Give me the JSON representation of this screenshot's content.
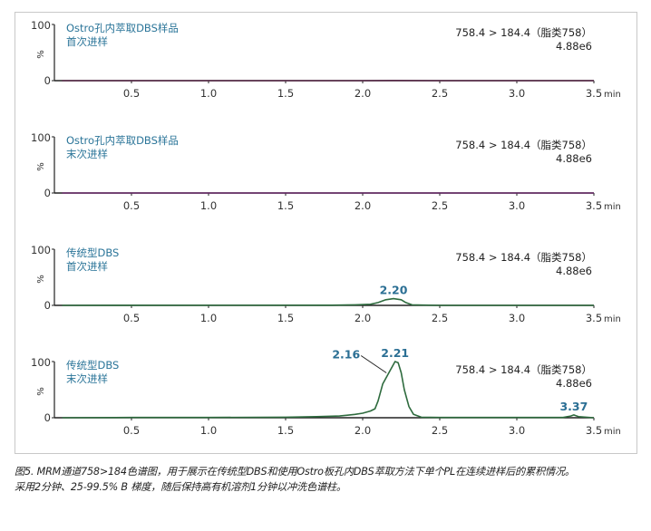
{
  "figure": {
    "caption_lines": [
      "图5. MRM通道758>184色谱图，用于展示在传统型DBS和使用Ostro板孔内DBS萃取方法下单个PL在连续进样后的累积情况。",
      "采用2分钟、25-99.5% B 梯度，随后保持高有机溶剂1分钟以冲洗色谱柱。"
    ]
  },
  "chart_data": [
    {
      "type": "line",
      "title": "Ostro孔内萃取DBS样品 首次进样",
      "label_lines": [
        "Ostro孔内萃取DBS样品",
        "首次进样"
      ],
      "channel": "758.4 > 184.4（脂类758）",
      "intensity": "4.88e6",
      "xlabel": "min",
      "ylabel": "%",
      "xlim": [
        0,
        3.5
      ],
      "ylim": [
        0,
        100
      ],
      "x_ticks": [
        "0.5",
        "1.0",
        "1.5",
        "2.0",
        "2.5",
        "3.0",
        "3.5"
      ],
      "y_ticks": [
        "0",
        "100"
      ],
      "line_color": "#5a2a4a",
      "x": [
        0.05,
        0.5,
        1.0,
        1.5,
        2.0,
        2.2,
        2.5,
        3.0,
        3.5
      ],
      "y": [
        0,
        0,
        0,
        0,
        0,
        0.3,
        0,
        0,
        0
      ],
      "peaks": []
    },
    {
      "type": "line",
      "title": "Ostro孔内萃取DBS样品 末次进样",
      "label_lines": [
        "Ostro孔内萃取DBS样品",
        "末次进样"
      ],
      "channel": "758.4 > 184.4（脂类758）",
      "intensity": "4.88e6",
      "xlabel": "min",
      "ylabel": "%",
      "xlim": [
        0,
        3.5
      ],
      "ylim": [
        0,
        100
      ],
      "x_ticks": [
        "0.5",
        "1.0",
        "1.5",
        "2.0",
        "2.5",
        "3.0",
        "3.5"
      ],
      "y_ticks": [
        "0",
        "100"
      ],
      "line_color": "#6a2a6a",
      "x": [
        0.05,
        0.5,
        1.0,
        1.5,
        2.0,
        2.5,
        3.0,
        3.5
      ],
      "y": [
        0,
        0,
        0,
        0,
        0,
        0,
        0,
        0
      ],
      "peaks": []
    },
    {
      "type": "line",
      "title": "传统型DBS 首次进样",
      "label_lines": [
        "传统型DBS",
        "首次进样"
      ],
      "channel": "758.4 > 184.4（脂类758）",
      "intensity": "4.88e6",
      "xlabel": "min",
      "ylabel": "%",
      "xlim": [
        0,
        3.5
      ],
      "ylim": [
        0,
        100
      ],
      "x_ticks": [
        "0.5",
        "1.0",
        "1.5",
        "2.0",
        "2.5",
        "3.0",
        "3.5"
      ],
      "y_ticks": [
        "0",
        "100"
      ],
      "line_color": "#2e6b3e",
      "x": [
        0.05,
        1.8,
        1.95,
        2.05,
        2.1,
        2.15,
        2.2,
        2.25,
        2.28,
        2.32,
        2.5,
        3.0,
        3.5
      ],
      "y": [
        0,
        0.3,
        1,
        2,
        5,
        10,
        12,
        10,
        5,
        1,
        0,
        0,
        0
      ],
      "peaks": [
        {
          "rt": "2.20",
          "x": 2.2,
          "y": 12
        }
      ]
    },
    {
      "type": "line",
      "title": "传统型DBS 末次进样",
      "label_lines": [
        "传统型DBS",
        "末次进样"
      ],
      "channel": "758.4 > 184.4（脂类758）",
      "intensity": "4.88e6",
      "xlabel": "min",
      "ylabel": "%",
      "xlim": [
        0,
        3.5
      ],
      "ylim": [
        0,
        100
      ],
      "x_ticks": [
        "0.5",
        "1.0",
        "1.5",
        "2.0",
        "2.5",
        "3.0",
        "3.5"
      ],
      "y_ticks": [
        "0",
        "100"
      ],
      "line_color": "#2e6b3e",
      "x": [
        0.05,
        0.5,
        1.0,
        1.5,
        1.7,
        1.85,
        1.95,
        2.0,
        2.05,
        2.08,
        2.1,
        2.13,
        2.16,
        2.18,
        2.2,
        2.21,
        2.23,
        2.25,
        2.27,
        2.3,
        2.33,
        2.38,
        2.5,
        3.0,
        3.3,
        3.35,
        3.37,
        3.4,
        3.5
      ],
      "y": [
        0,
        0.5,
        0.5,
        1,
        2,
        3,
        6,
        8,
        12,
        16,
        30,
        60,
        75,
        85,
        95,
        100,
        98,
        80,
        50,
        20,
        6,
        1,
        0.5,
        0.5,
        0.5,
        3,
        5,
        2,
        0
      ],
      "peaks": [
        {
          "rt": "2.16",
          "x": 2.16,
          "y": 75
        },
        {
          "rt": "2.21",
          "x": 2.21,
          "y": 100
        },
        {
          "rt": "3.37",
          "x": 3.37,
          "y": 5
        }
      ]
    }
  ],
  "colors": {
    "label_blue": "#2b7599",
    "peak_label_blue": "#2b6f94",
    "axis": "#222222",
    "frame": "#c8c8c8"
  }
}
